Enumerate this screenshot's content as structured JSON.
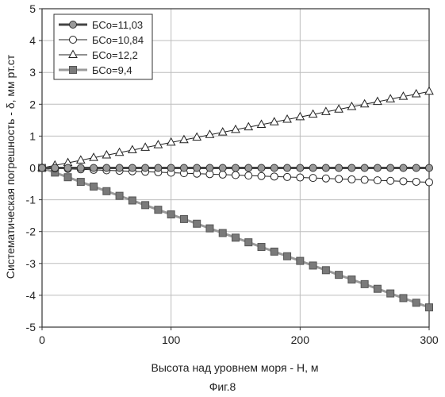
{
  "caption": "Фиг.8",
  "chart_data": {
    "type": "line",
    "xlabel": "Высота над уровнем моря - Н, м",
    "ylabel": "Систематическая погрешность - δ, мм рт.ст",
    "xlim": [
      0,
      300
    ],
    "ylim": [
      -5,
      5
    ],
    "xticks": [
      0,
      100,
      200,
      300
    ],
    "yticks": [
      5,
      4,
      3,
      2,
      1,
      0,
      -1,
      -2,
      -3,
      -4,
      -5
    ],
    "grid": true,
    "legend_position": "top-left",
    "x": [
      0,
      10,
      20,
      30,
      40,
      50,
      60,
      70,
      80,
      90,
      100,
      110,
      120,
      130,
      140,
      150,
      160,
      170,
      180,
      190,
      200,
      210,
      220,
      230,
      240,
      250,
      260,
      270,
      280,
      290,
      300
    ],
    "series": [
      {
        "name": "БСо=11,03",
        "marker": "circle-filled",
        "color": "#444444",
        "fill": "#9a9a9a",
        "line_width": 3,
        "values": [
          0,
          0,
          0,
          0,
          0,
          0,
          0,
          0,
          0,
          0,
          0,
          0,
          0,
          0,
          0,
          0,
          0,
          0,
          0,
          0,
          0,
          0,
          0,
          0,
          0,
          0,
          0,
          0,
          0,
          0,
          0
        ]
      },
      {
        "name": "БСо=10,84",
        "marker": "circle-open",
        "color": "#222222",
        "fill": "#ffffff",
        "line_width": 1,
        "values": [
          0,
          -0.015,
          -0.03,
          -0.045,
          -0.06,
          -0.075,
          -0.09,
          -0.105,
          -0.12,
          -0.135,
          -0.15,
          -0.165,
          -0.18,
          -0.195,
          -0.21,
          -0.225,
          -0.24,
          -0.255,
          -0.27,
          -0.285,
          -0.3,
          -0.315,
          -0.33,
          -0.345,
          -0.36,
          -0.375,
          -0.39,
          -0.405,
          -0.42,
          -0.435,
          -0.45
        ]
      },
      {
        "name": "БСо=12,2",
        "marker": "triangle-open",
        "color": "#222222",
        "fill": "#ffffff",
        "line_width": 1,
        "values": [
          0,
          0.08,
          0.16,
          0.24,
          0.32,
          0.4,
          0.48,
          0.56,
          0.64,
          0.72,
          0.8,
          0.88,
          0.96,
          1.04,
          1.12,
          1.2,
          1.28,
          1.36,
          1.44,
          1.52,
          1.6,
          1.68,
          1.76,
          1.84,
          1.92,
          2.0,
          2.08,
          2.16,
          2.24,
          2.32,
          2.4
        ]
      },
      {
        "name": "БСо=9,4",
        "marker": "square-filled",
        "color": "#9a9a9a",
        "fill": "#7a7a7a",
        "line_width": 3,
        "values": [
          0,
          -0.146,
          -0.292,
          -0.438,
          -0.584,
          -0.73,
          -0.876,
          -1.022,
          -1.168,
          -1.314,
          -1.46,
          -1.606,
          -1.752,
          -1.898,
          -2.044,
          -2.19,
          -2.336,
          -2.482,
          -2.628,
          -2.774,
          -2.92,
          -3.066,
          -3.212,
          -3.358,
          -3.504,
          -3.65,
          -3.796,
          -3.942,
          -4.088,
          -4.234,
          -4.38
        ]
      }
    ]
  }
}
